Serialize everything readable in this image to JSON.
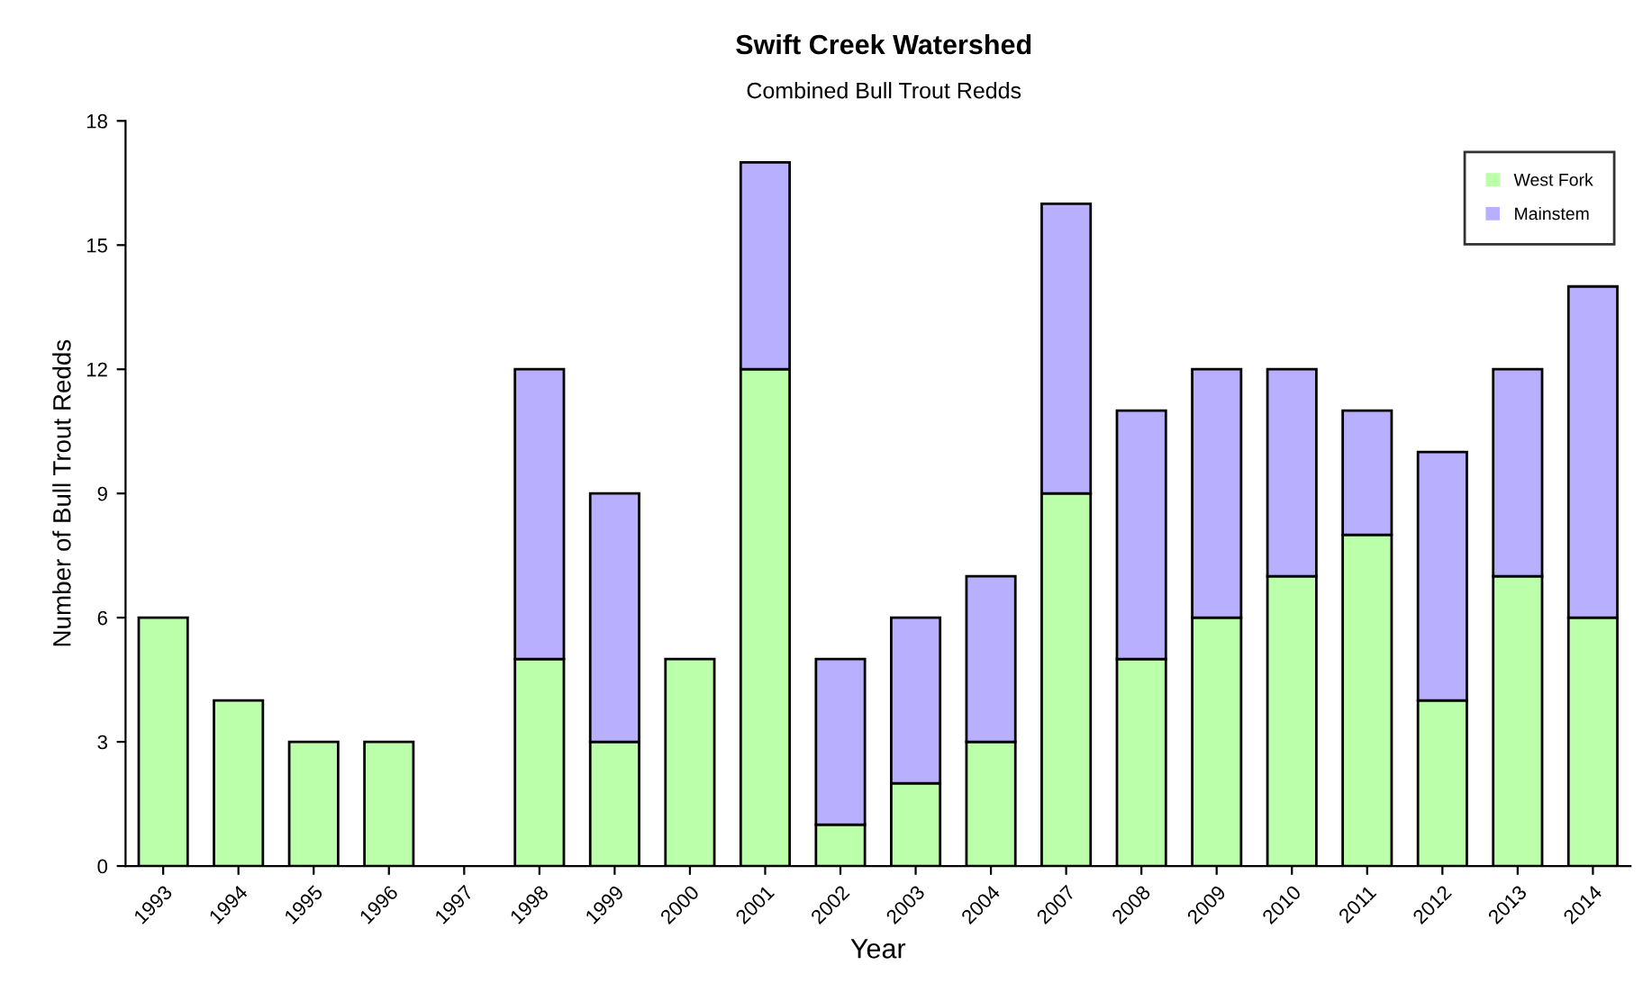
{
  "chart_data": {
    "type": "bar",
    "title": "Swift Creek Watershed",
    "subtitle": "Combined Bull Trout Redds",
    "xlabel": "Year",
    "ylabel": "Number of Bull Trout Redds",
    "categories": [
      "1993",
      "1994",
      "1995",
      "1996",
      "1997",
      "1998",
      "1999",
      "2000",
      "2001",
      "2002",
      "2003",
      "2004",
      "2007",
      "2008",
      "2009",
      "2010",
      "2011",
      "2012",
      "2013",
      "2014"
    ],
    "stacked": true,
    "series": [
      {
        "name": "West Fork",
        "color": "#bbffaa",
        "values": [
          6,
          4,
          3,
          3,
          0,
          5,
          3,
          5,
          12,
          1,
          2,
          3,
          9,
          5,
          6,
          7,
          8,
          4,
          7,
          6
        ]
      },
      {
        "name": "Mainstem",
        "color": "#b8b0ff",
        "values": [
          0,
          0,
          0,
          0,
          0,
          7,
          6,
          0,
          5,
          4,
          4,
          4,
          7,
          6,
          6,
          5,
          3,
          6,
          5,
          8
        ]
      }
    ],
    "ylim": [
      0,
      18
    ],
    "yticks": [
      0,
      3,
      6,
      9,
      12,
      15,
      18
    ],
    "grid": false,
    "legend": "top right"
  }
}
